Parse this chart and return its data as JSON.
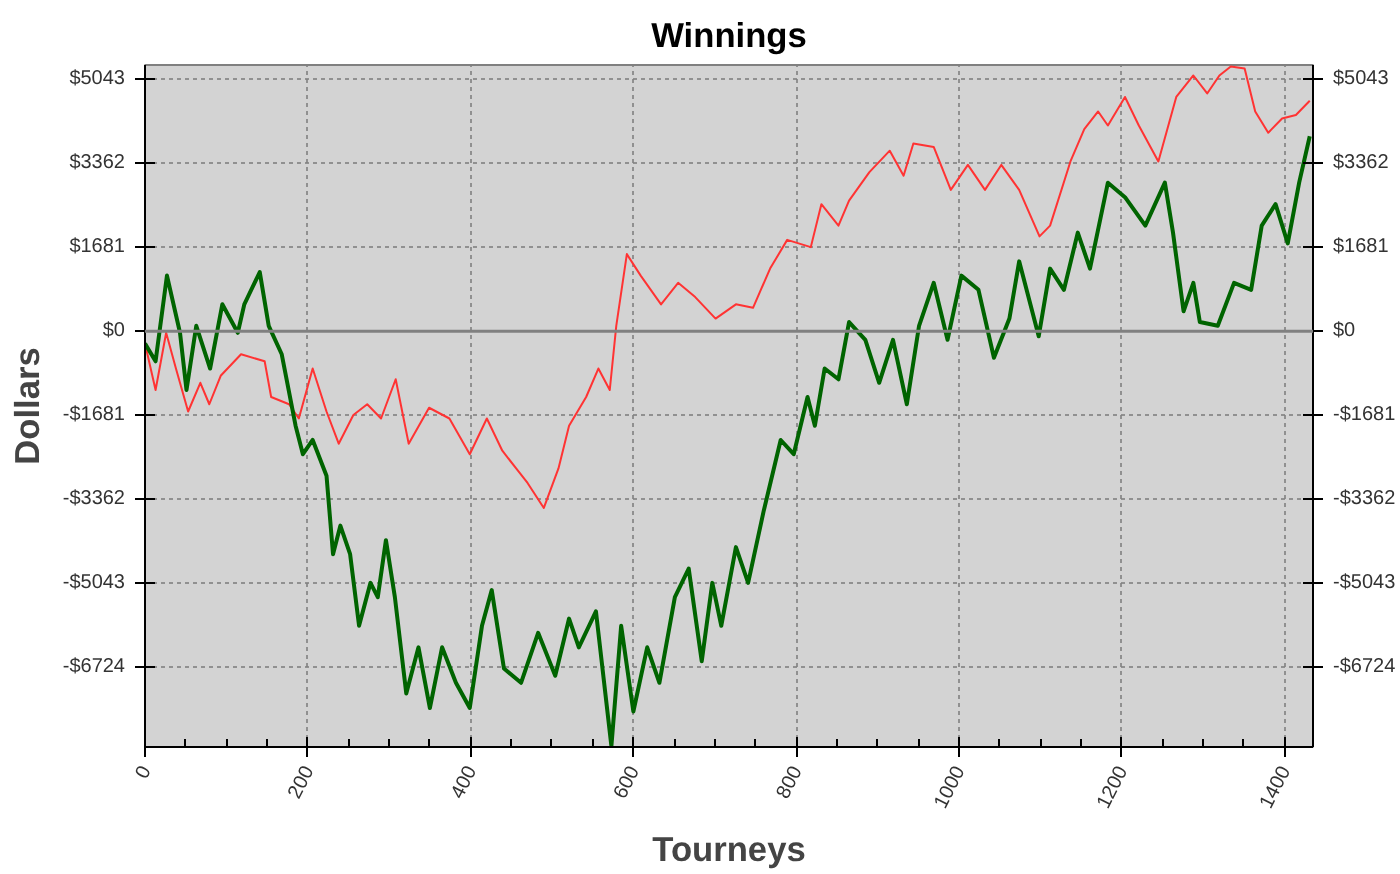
{
  "chart_data": {
    "type": "line",
    "title": "Winnings",
    "xlabel": "Tourneys",
    "ylabel": "Dollars",
    "xlim": [
      0,
      1435
    ],
    "ylim": [
      -8320,
      5330
    ],
    "y2lim": [
      -8320,
      5330
    ],
    "xticks": [
      0,
      200,
      400,
      600,
      800,
      1000,
      1200,
      1400
    ],
    "yticks": [
      {
        "value": 5043,
        "label": "$5043"
      },
      {
        "value": 3362,
        "label": "$3362"
      },
      {
        "value": 1681,
        "label": "$1681"
      },
      {
        "value": 0,
        "label": "$0"
      },
      {
        "value": -1681,
        "label": "-$1681"
      },
      {
        "value": -3362,
        "label": "-$3362"
      },
      {
        "value": -5043,
        "label": "-$5043"
      },
      {
        "value": -6724,
        "label": "-$6724"
      }
    ],
    "y2ticks": [
      {
        "value": 5043,
        "label": "$5043"
      },
      {
        "value": 3362,
        "label": "$3362"
      },
      {
        "value": 1681,
        "label": "$1681"
      },
      {
        "value": 0,
        "label": "$0"
      },
      {
        "value": -1681,
        "label": "-$1681"
      },
      {
        "value": -3362,
        "label": "-$3362"
      },
      {
        "value": -5043,
        "label": "-$5043"
      },
      {
        "value": -6724,
        "label": "-$6724"
      }
    ],
    "grid": true,
    "marker": "none",
    "line_style": "solid",
    "ref_lines": [
      {
        "axis": "y",
        "value": 0,
        "color": "#808080",
        "line_style": "solid"
      }
    ],
    "series": [
      {
        "color": "#ff3333",
        "x": [
          0,
          13,
          26,
          38,
          53,
          68,
          79,
          93,
          118,
          147,
          155,
          177,
          189,
          206,
          223,
          238,
          256,
          273,
          290,
          308,
          324,
          349,
          374,
          399,
          420,
          439,
          456,
          470,
          490,
          508,
          521,
          542,
          557,
          571,
          579,
          592,
          609,
          634,
          655,
          676,
          701,
          726,
          747,
          768,
          789,
          818,
          831,
          852,
          865,
          890,
          915,
          932,
          944,
          969,
          990,
          1011,
          1032,
          1052,
          1074,
          1099,
          1112,
          1137,
          1154,
          1171,
          1183,
          1204,
          1221,
          1245,
          1267,
          1288,
          1305,
          1320,
          1334,
          1351,
          1364,
          1380,
          1397,
          1414,
          1431
        ],
        "values": [
          -245,
          -1175,
          -30,
          -745,
          -1605,
          -1030,
          -1460,
          -890,
          -460,
          -600,
          -1315,
          -1460,
          -1745,
          -745,
          -1605,
          -2250,
          -1675,
          -1460,
          -1745,
          -960,
          -2250,
          -1530,
          -1745,
          -2460,
          -1745,
          -2390,
          -2745,
          -3035,
          -3535,
          -2745,
          -1890,
          -1315,
          -745,
          -1175,
          110,
          1545,
          1115,
          540,
          970,
          685,
          255,
          540,
          470,
          1255,
          1830,
          1685,
          2545,
          2115,
          2615,
          3185,
          3615,
          3115,
          3760,
          3690,
          2830,
          3330,
          2830,
          3330,
          2830,
          1900,
          2115,
          3400,
          4045,
          4400,
          4120,
          4690,
          4120,
          3400,
          4690,
          5120,
          4760,
          5120,
          5300,
          5260,
          4400,
          3975,
          4260,
          4330,
          4615
        ]
      },
      {
        "color": "#006400",
        "x": [
          0,
          13,
          27,
          43,
          51,
          63,
          80,
          95,
          114,
          122,
          141,
          152,
          168,
          185,
          194,
          206,
          223,
          231,
          240,
          252,
          263,
          277,
          286,
          296,
          307,
          321,
          336,
          350,
          365,
          382,
          399,
          414,
          426,
          441,
          462,
          483,
          504,
          521,
          533,
          554,
          573,
          585,
          600,
          617,
          632,
          651,
          668,
          684,
          697,
          708,
          726,
          741,
          760,
          781,
          797,
          814,
          823,
          835,
          852,
          865,
          885,
          902,
          919,
          936,
          951,
          969,
          986,
          1003,
          1024,
          1043,
          1062,
          1074,
          1098,
          1112,
          1129,
          1146,
          1161,
          1183,
          1204,
          1229,
          1253,
          1263,
          1276,
          1288,
          1296,
          1318,
          1338,
          1359,
          1372,
          1389,
          1404,
          1418,
          1431
        ],
        "values": [
          -245,
          -600,
          1115,
          -30,
          -1175,
          110,
          -745,
          540,
          -30,
          540,
          1185,
          110,
          -460,
          -1890,
          -2460,
          -2175,
          -2890,
          -4460,
          -3890,
          -4460,
          -5895,
          -5035,
          -5320,
          -4180,
          -5320,
          -7250,
          -6325,
          -7540,
          -6325,
          -7035,
          -7540,
          -5895,
          -5180,
          -6750,
          -7035,
          -6035,
          -6895,
          -5750,
          -6325,
          -5605,
          -8300,
          -5895,
          -7610,
          -6325,
          -7035,
          -5320,
          -4750,
          -6605,
          -5035,
          -5895,
          -4320,
          -5035,
          -3605,
          -2175,
          -2460,
          -1315,
          -1890,
          -745,
          -960,
          185,
          -170,
          -1030,
          -170,
          -1460,
          110,
          970,
          -170,
          1115,
          830,
          -530,
          255,
          1400,
          -100,
          1255,
          830,
          1975,
          1255,
          2975,
          2685,
          2115,
          2975,
          1975,
          400,
          970,
          185,
          110,
          970,
          830,
          2115,
          2545,
          1760,
          2975,
          3905
        ]
      }
    ]
  }
}
